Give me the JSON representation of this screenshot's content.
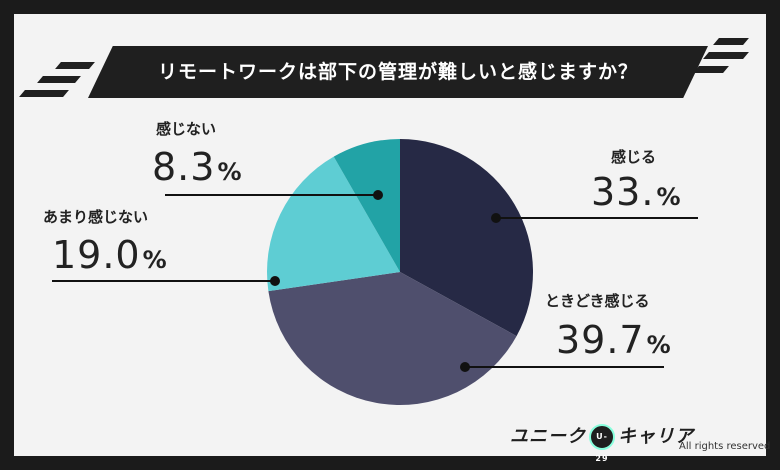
{
  "title": "リモートワークは部下の管理が難しいと感じますか？",
  "chart_data": {
    "type": "pie",
    "categories": [
      "感じる",
      "ときどき感じる",
      "あまり感じない",
      "感じない"
    ],
    "values": [
      33.0,
      39.7,
      19.0,
      8.3
    ],
    "value_labels": [
      "33.",
      "39.7",
      "19.0",
      "8.3"
    ],
    "unit": "%",
    "colors": [
      "#262945",
      "#4f4f6d",
      "#5ecdd3",
      "#22a3a6"
    ],
    "start_angle_deg": 0,
    "direction": "clockwise"
  },
  "labels": [
    {
      "name": "感じる",
      "value": "33.",
      "unit": "%"
    },
    {
      "name": "ときどき感じる",
      "value": "39.7",
      "unit": "%"
    },
    {
      "name": "あまり感じない",
      "value": "19.0",
      "unit": "%"
    },
    {
      "name": "感じない",
      "value": "8.3",
      "unit": "%"
    }
  ],
  "footer": {
    "logo_left": "ユニーク",
    "logo_badge": "U-29",
    "logo_right": "キャリア",
    "rights": "All rights reserved"
  }
}
